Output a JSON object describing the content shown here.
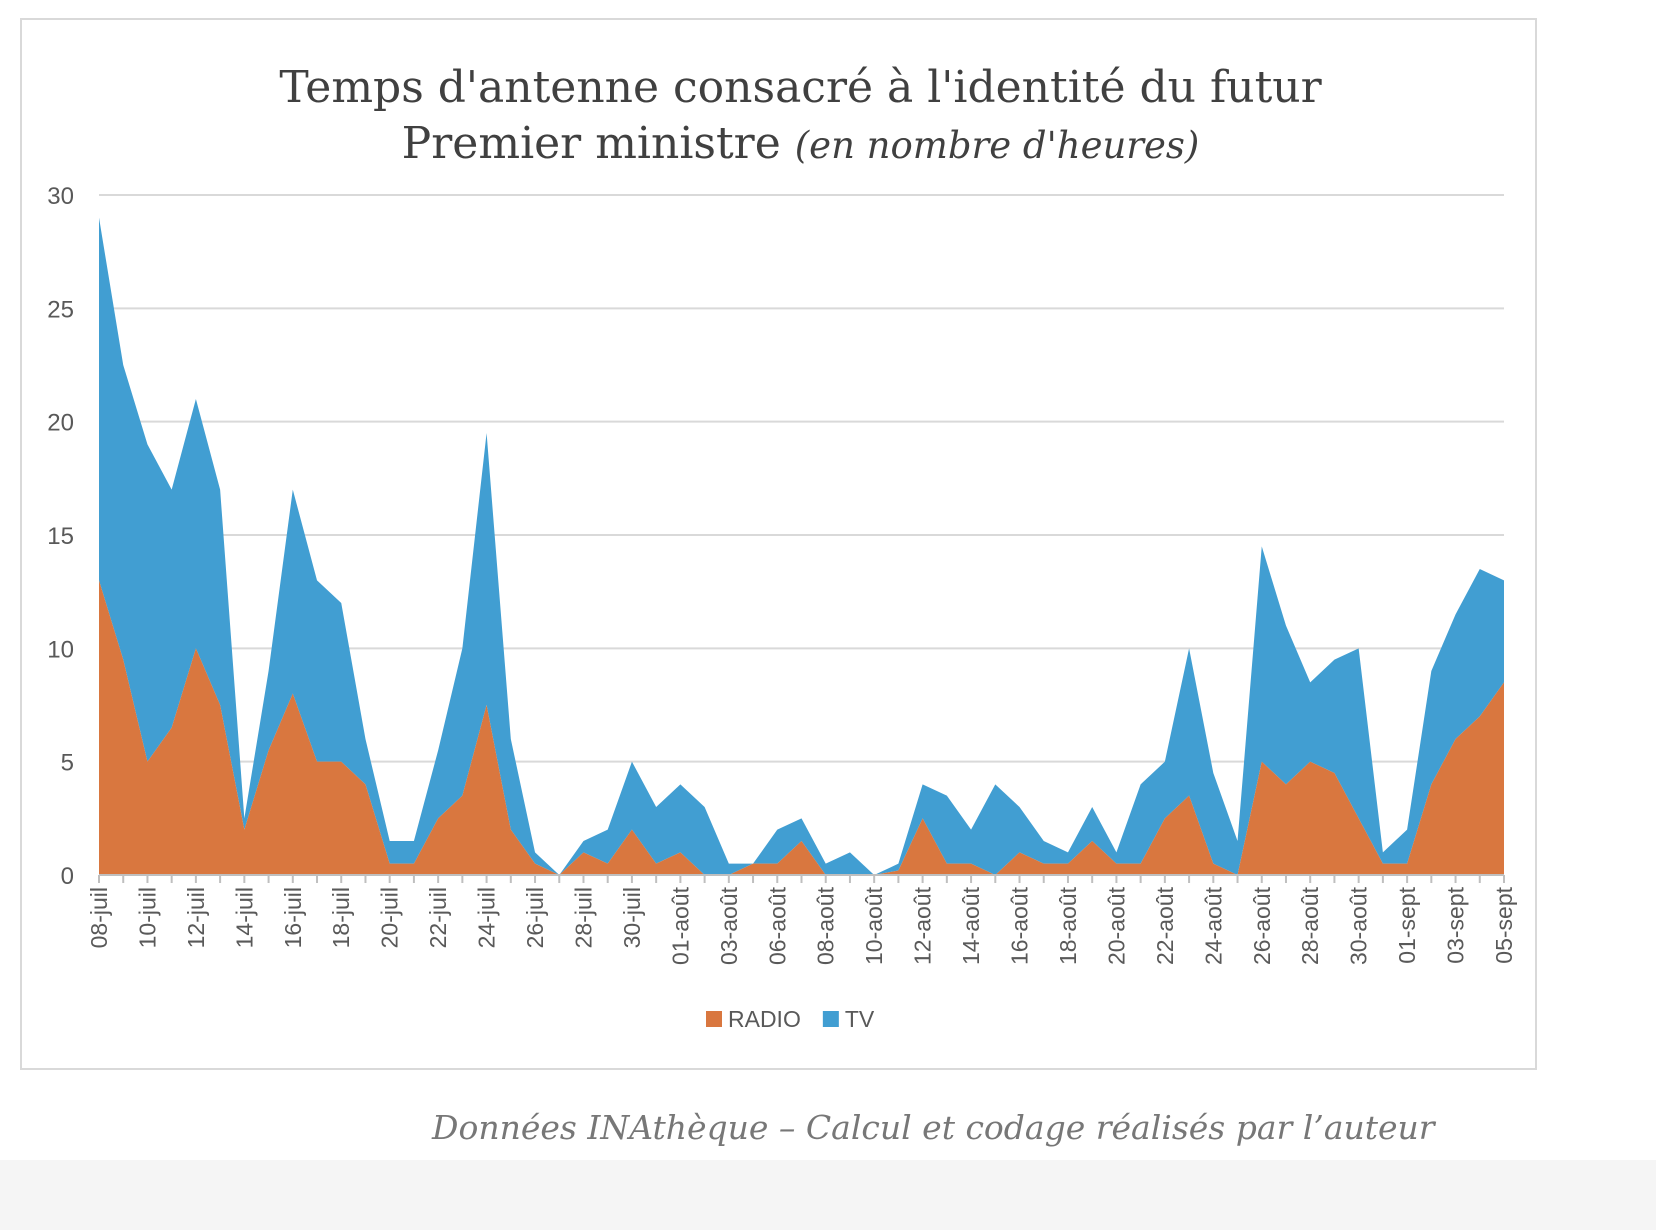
{
  "chart_data": {
    "type": "area",
    "stacked": true,
    "title": "Temps d'antenne consacré à l'identité du futur",
    "title_line2": "Premier ministre",
    "subtitle": "(en nombre d'heures)",
    "xlabel": "",
    "ylabel": "",
    "ylim": [
      0,
      30
    ],
    "yticks": [
      0,
      5,
      10,
      15,
      20,
      25,
      30
    ],
    "grid": true,
    "legend_position": "bottom",
    "categories": [
      "08-juil",
      "09-juil",
      "10-juil",
      "11-juil",
      "12-juil",
      "13-juil",
      "14-juil",
      "15-juil",
      "16-juil",
      "17-juil",
      "18-juil",
      "19-juil",
      "20-juil",
      "21-juil",
      "22-juil",
      "23-juil",
      "24-juil",
      "25-juil",
      "26-juil",
      "27-juil",
      "28-juil",
      "29-juil",
      "30-juil",
      "31-juil",
      "01-août",
      "02-août",
      "03-août",
      "05-août",
      "06-août",
      "07-août",
      "08-août",
      "09-août",
      "10-août",
      "11-août",
      "12-août",
      "13-août",
      "14-août",
      "15-août",
      "16-août",
      "17-août",
      "18-août",
      "19-août",
      "20-août",
      "21-août",
      "22-août",
      "23-août",
      "24-août",
      "25-août",
      "26-août",
      "27-août",
      "28-août",
      "29-août",
      "30-août",
      "31-août",
      "01-sept",
      "02-sept",
      "03-sept",
      "04-sept",
      "05-sept"
    ],
    "tick_labels": [
      "08-juil",
      "10-juil",
      "12-juil",
      "14-juil",
      "16-juil",
      "18-juil",
      "20-juil",
      "22-juil",
      "24-juil",
      "26-juil",
      "28-juil",
      "30-juil",
      "01-août",
      "03-août",
      "06-août",
      "08-août",
      "10-août",
      "12-août",
      "14-août",
      "16-août",
      "18-août",
      "20-août",
      "22-août",
      "24-août",
      "26-août",
      "28-août",
      "30-août",
      "01-sept",
      "03-sept",
      "05-sept"
    ],
    "series": [
      {
        "name": "RADIO",
        "color": "#d9773f",
        "values": [
          13,
          9.5,
          5,
          6.5,
          10,
          7.5,
          2,
          5.5,
          8,
          5,
          5,
          4,
          0.5,
          0.5,
          2.5,
          3.5,
          7.5,
          2,
          0.5,
          0,
          1,
          0.5,
          2,
          0.5,
          1,
          0,
          0,
          0.5,
          0.5,
          1.5,
          0,
          0,
          0,
          0.2,
          2.5,
          0.5,
          0.5,
          0,
          1,
          0.5,
          0.5,
          1.5,
          0.5,
          0.5,
          2.5,
          3.5,
          0.5,
          0,
          5,
          4,
          5,
          4.5,
          2.5,
          0.5,
          0.5,
          4,
          6,
          7,
          8.5
        ]
      },
      {
        "name": "TV",
        "color": "#419ed2",
        "values": [
          16,
          13,
          14,
          10.5,
          11,
          9.5,
          0.5,
          3.5,
          9,
          8,
          7,
          2,
          1,
          1,
          3,
          6.5,
          12,
          4,
          0.5,
          0,
          0.5,
          1.5,
          3,
          2.5,
          3,
          3,
          0.5,
          0,
          1.5,
          1,
          0.5,
          1,
          0,
          0.3,
          1.5,
          3,
          1.5,
          4,
          2,
          1,
          0.5,
          1.5,
          0.5,
          3.5,
          2.5,
          6.5,
          4,
          1.5,
          9.5,
          7,
          3.5,
          5,
          7.5,
          0.5,
          1.5,
          5,
          5.5,
          6.5,
          4.5
        ]
      }
    ]
  },
  "caption": "Données INAthèque – Calcul et codage réalisés par l’auteur"
}
